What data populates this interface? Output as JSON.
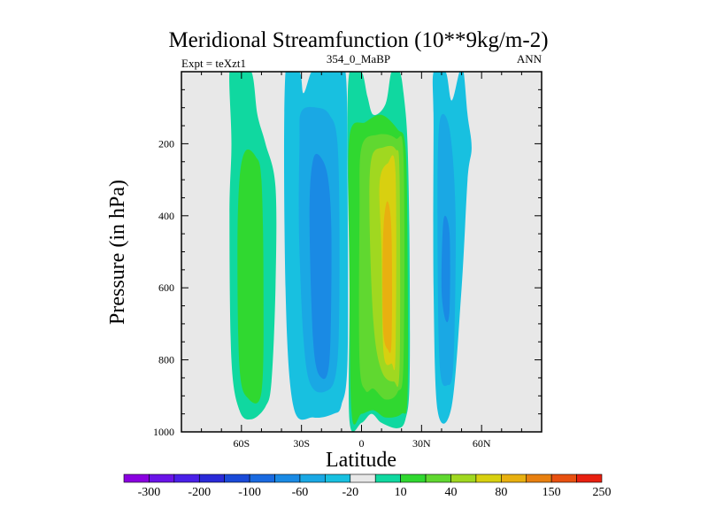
{
  "chart_data": {
    "type": "contour",
    "title": "Meridional Streamfunction (10**9kg/m-2)",
    "subtitle_left": "Expt = teXzt1",
    "subtitle_center": "354_0_MaBP",
    "subtitle_right": "ANN",
    "xlabel": "Latitude",
    "ylabel": "Pressure (in hPa)",
    "xlim": [
      -90,
      90
    ],
    "ylim": [
      1000,
      0
    ],
    "x_ticks": [
      {
        "value": -60,
        "label": "60S"
      },
      {
        "value": -30,
        "label": "30S"
      },
      {
        "value": 0,
        "label": "0"
      },
      {
        "value": 30,
        "label": "30N"
      },
      {
        "value": 60,
        "label": "60N"
      }
    ],
    "y_ticks": [
      {
        "value": 200,
        "label": "200"
      },
      {
        "value": 400,
        "label": "400"
      },
      {
        "value": 600,
        "label": "600"
      },
      {
        "value": 800,
        "label": "800"
      },
      {
        "value": 1000,
        "label": "1000"
      }
    ],
    "background_color": "#e8e8e8",
    "colorbar": {
      "colors": [
        "#8a00e0",
        "#6a14e8",
        "#4a20e8",
        "#2a2ad8",
        "#1a4ad8",
        "#1a6ae0",
        "#1a8ae4",
        "#1aa8e4",
        "#18c0e0",
        "#e8e8e8",
        "#10d8a0",
        "#30d830",
        "#60d830",
        "#a0d820",
        "#d8d010",
        "#e8b010",
        "#e88010",
        "#e85010",
        "#e82010"
      ],
      "labels": [
        "-300",
        "-200",
        "-100",
        "-60",
        "-20",
        "10",
        "40",
        "80",
        "150",
        "250"
      ]
    },
    "cells": [
      {
        "name": "sh-outer-cell",
        "value": 15,
        "color": "#10d8a0",
        "lat": [
          -62,
          -55,
          -52,
          -48,
          -43,
          -43,
          -45,
          -48,
          -55,
          -61,
          -65,
          -66,
          -65,
          -66
        ],
        "p": [
          0,
          0,
          120,
          200,
          320,
          600,
          860,
          930,
          965,
          940,
          800,
          400,
          200,
          0
        ]
      },
      {
        "name": "sh-outer-core",
        "value": 45,
        "color": "#30d830",
        "lat": [
          -58,
          -53,
          -50,
          -49,
          -50,
          -57,
          -61,
          -62,
          -61
        ],
        "p": [
          220,
          235,
          300,
          600,
          890,
          905,
          820,
          500,
          300
        ]
      },
      {
        "name": "sh-inner-cell",
        "value": -15,
        "color": "#18c0e0",
        "lat": [
          -38,
          -31,
          -29,
          -25,
          -21,
          -14,
          -8,
          -7,
          -7,
          -10,
          -14,
          -24,
          -34,
          -38
        ],
        "p": [
          0,
          0,
          60,
          0,
          0,
          0,
          0,
          300,
          800,
          925,
          950,
          960,
          930,
          600
        ]
      },
      {
        "name": "sh-inner-mid",
        "value": -30,
        "color": "#1aa8e4",
        "lat": [
          -30,
          -22,
          -16,
          -12,
          -11,
          -12,
          -17,
          -27,
          -31,
          -31
        ],
        "p": [
          110,
          100,
          120,
          200,
          500,
          800,
          885,
          840,
          500,
          200
        ]
      },
      {
        "name": "sh-inner-core",
        "value": -60,
        "color": "#1a8ae4",
        "lat": [
          -24,
          -19,
          -16,
          -15,
          -16,
          -20,
          -24,
          -26
        ],
        "p": [
          240,
          250,
          330,
          500,
          800,
          850,
          760,
          400
        ]
      },
      {
        "name": "tropical-cell",
        "value": 30,
        "color": "#10d8a0",
        "lat": [
          -6,
          0,
          3,
          6,
          12,
          15,
          19,
          21,
          23,
          24,
          24,
          22,
          18,
          10,
          5,
          0,
          -6,
          -6,
          -7
        ],
        "p": [
          0,
          0,
          70,
          120,
          90,
          0,
          0,
          60,
          200,
          500,
          860,
          965,
          990,
          975,
          950,
          975,
          970,
          600,
          200
        ]
      },
      {
        "name": "tropical-band-1",
        "value": 50,
        "color": "#30d830",
        "lat": [
          -6,
          2,
          10,
          18,
          22,
          23,
          23,
          20,
          12,
          6,
          0,
          -5,
          -6
        ],
        "p": [
          180,
          140,
          120,
          160,
          210,
          500,
          900,
          950,
          960,
          940,
          950,
          945,
          500
        ]
      },
      {
        "name": "tropical-band-2",
        "value": 65,
        "color": "#60d830",
        "lat": [
          0,
          8,
          17,
          21,
          21,
          18,
          12,
          6,
          2,
          -1,
          -1
        ],
        "p": [
          210,
          175,
          185,
          240,
          800,
          890,
          910,
          880,
          885,
          800,
          400
        ]
      },
      {
        "name": "tropical-band-3",
        "value": 85,
        "color": "#a0d820",
        "lat": [
          5,
          11,
          17,
          19,
          19,
          16,
          10,
          6,
          4
        ],
        "p": [
          240,
          210,
          215,
          290,
          820,
          860,
          830,
          700,
          400
        ]
      },
      {
        "name": "tropical-band-4",
        "value": 120,
        "color": "#d8d010",
        "lat": [
          9,
          13,
          17,
          17,
          15,
          11,
          10
        ],
        "p": [
          310,
          255,
          280,
          780,
          810,
          780,
          500
        ]
      },
      {
        "name": "tropical-core",
        "value": 160,
        "color": "#e8b010",
        "lat": [
          11,
          13,
          15,
          15,
          13,
          11,
          10.5
        ],
        "p": [
          430,
          360,
          450,
          750,
          770,
          730,
          600
        ]
      },
      {
        "name": "nh-inner-cell",
        "value": -15,
        "color": "#18c0e0",
        "lat": [
          36,
          42,
          45,
          49,
          51,
          53,
          55,
          53,
          50,
          45,
          38,
          36,
          36
        ],
        "p": [
          0,
          0,
          80,
          0,
          0,
          120,
          210,
          300,
          600,
          930,
          940,
          600,
          150
        ]
      },
      {
        "name": "nh-inner-core",
        "value": -30,
        "color": "#1aa8e4",
        "lat": [
          39,
          44,
          47,
          46,
          43,
          39,
          38
        ],
        "p": [
          140,
          160,
          400,
          800,
          870,
          810,
          400
        ]
      },
      {
        "name": "nh-inner-deep",
        "value": -45,
        "color": "#1a8ae4",
        "lat": [
          41,
          44,
          44,
          42,
          40
        ],
        "p": [
          410,
          450,
          660,
          690,
          600
        ]
      }
    ]
  }
}
